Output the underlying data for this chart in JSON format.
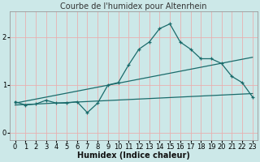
{
  "title": "Courbe de l'humidex pour Altenrhein",
  "xlabel": "Humidex (Indice chaleur)",
  "bg_color": "#cce8e8",
  "grid_color": "#e8b0b0",
  "line_color": "#1a6b6b",
  "xlim": [
    -0.5,
    23.5
  ],
  "ylim": [
    -0.15,
    2.55
  ],
  "xticks": [
    0,
    1,
    2,
    3,
    4,
    5,
    6,
    7,
    8,
    9,
    10,
    11,
    12,
    13,
    14,
    15,
    16,
    17,
    18,
    19,
    20,
    21,
    22,
    23
  ],
  "yticks": [
    0,
    1,
    2
  ],
  "line1_x": [
    0,
    1,
    2,
    3,
    4,
    5,
    6,
    7,
    8,
    9,
    10,
    11,
    12,
    13,
    14,
    15,
    16,
    17,
    18,
    19,
    20,
    21,
    22,
    23
  ],
  "line1_y": [
    0.65,
    0.58,
    0.6,
    0.68,
    0.62,
    0.62,
    0.65,
    0.42,
    0.62,
    1.0,
    1.05,
    1.42,
    1.75,
    1.9,
    2.18,
    2.28,
    1.9,
    1.75,
    1.55,
    1.55,
    1.45,
    1.18,
    1.05,
    0.75
  ],
  "line2_x": [
    0,
    23
  ],
  "line2_y": [
    0.62,
    1.58
  ],
  "line3_x": [
    0,
    23
  ],
  "line3_y": [
    0.58,
    0.82
  ],
  "title_fontsize": 7,
  "tick_fontsize": 6,
  "xlabel_fontsize": 7
}
